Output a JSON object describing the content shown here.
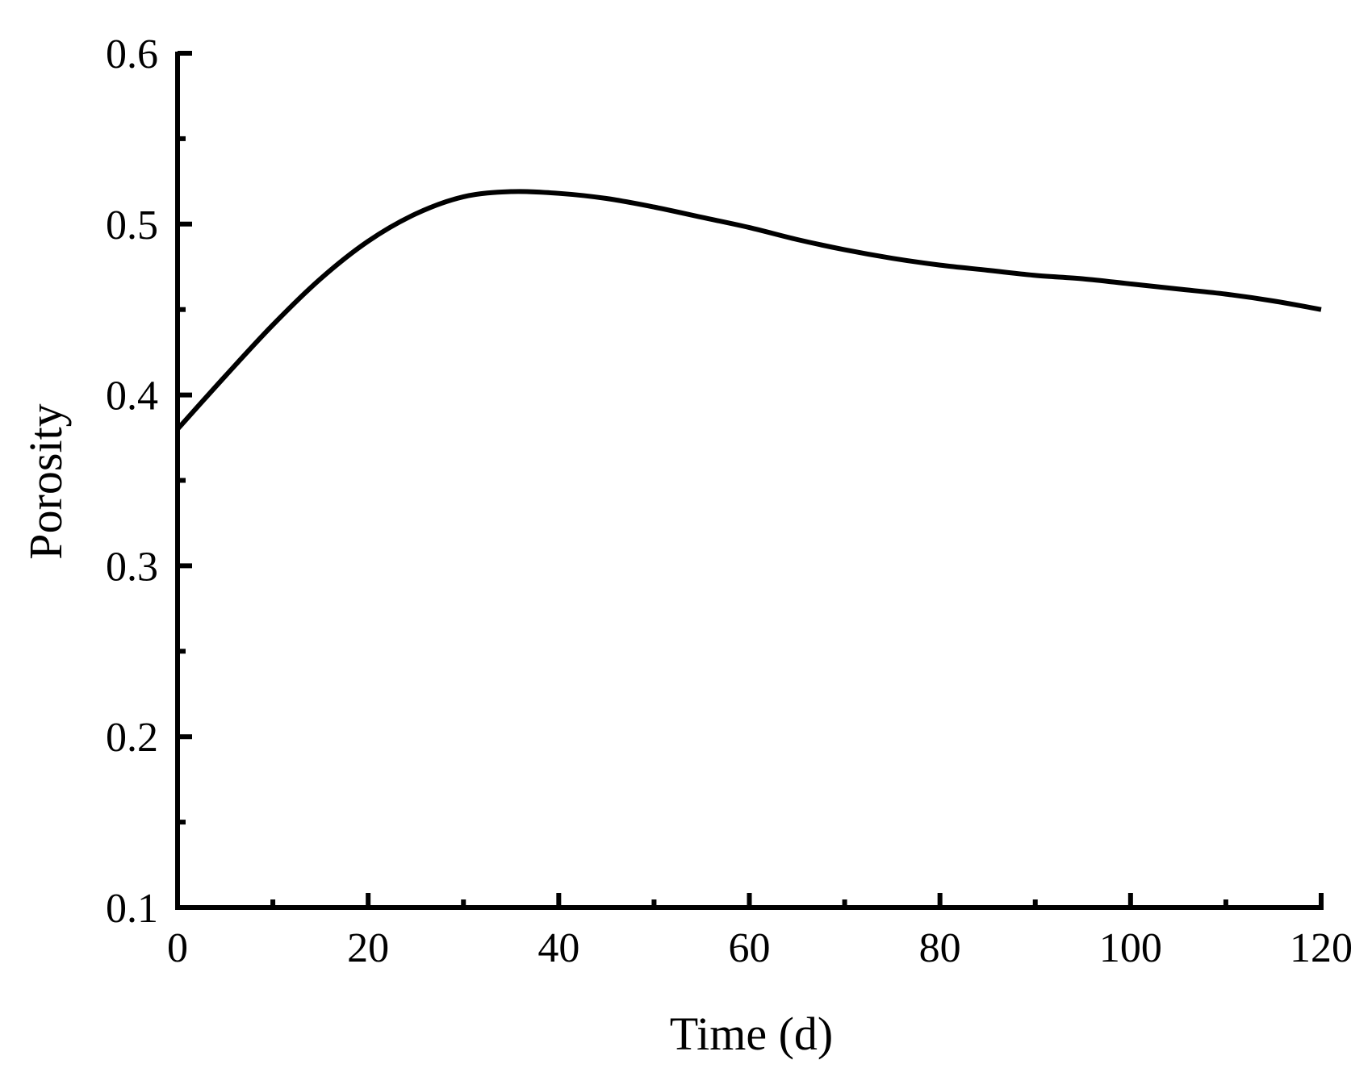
{
  "chart_data": {
    "type": "line",
    "title": "",
    "xlabel": "Time (d)",
    "ylabel": "Porosity",
    "xlim": [
      0,
      120
    ],
    "ylim": [
      0.1,
      0.6
    ],
    "x_ticks": [
      0,
      20,
      40,
      60,
      80,
      100,
      120
    ],
    "x_tick_labels": [
      "0",
      "20",
      "40",
      "60",
      "80",
      "100",
      "120"
    ],
    "x_minor_ticks": [
      10,
      30,
      50,
      70,
      90,
      110
    ],
    "y_ticks": [
      0.1,
      0.2,
      0.3,
      0.4,
      0.5,
      0.6
    ],
    "y_tick_labels": [
      "0.1",
      "0.2",
      "0.3",
      "0.4",
      "0.5",
      "0.6"
    ],
    "y_minor_ticks": [
      0.15,
      0.25,
      0.35,
      0.45,
      0.55
    ],
    "grid": false,
    "series": [
      {
        "color": "#000000",
        "x": [
          0,
          5,
          10,
          15,
          20,
          25,
          30,
          35,
          40,
          45,
          50,
          55,
          60,
          65,
          70,
          75,
          80,
          85,
          90,
          95,
          100,
          105,
          110,
          115,
          120
        ],
        "y": [
          0.38,
          0.411,
          0.441,
          0.468,
          0.49,
          0.506,
          0.516,
          0.519,
          0.518,
          0.515,
          0.51,
          0.504,
          0.498,
          0.491,
          0.485,
          0.48,
          0.476,
          0.473,
          0.47,
          0.468,
          0.465,
          0.462,
          0.459,
          0.455,
          0.45
        ]
      }
    ]
  }
}
